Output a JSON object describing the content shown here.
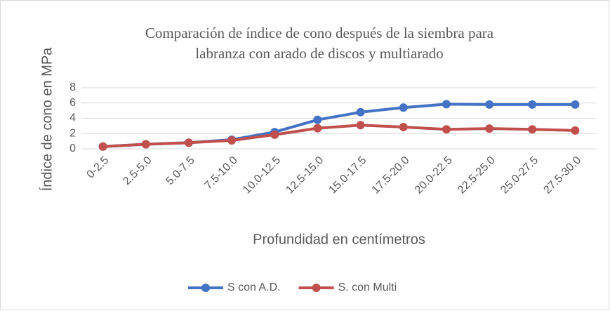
{
  "chart_data": {
    "type": "line",
    "title": [
      "Comparación de índice de cono después de la siembra para",
      "labranza con arado de discos y multiarado"
    ],
    "x_label": "Profundidad en centímetros",
    "y_label": "Índice de cono en MPa",
    "categories": [
      "0-2.5",
      "2.5-5.0",
      "5.0-7.5",
      "7.5-10.0",
      "10.0-12.5",
      "12.5-15.0",
      "15.0-17.5",
      "17.5-20.0",
      "20.0-22.5",
      "22.5-25.0",
      "25.0-27.5",
      "27.5-30.0"
    ],
    "series": [
      {
        "name": "S con A.D.",
        "color": "#4472c4",
        "values": [
          0.3,
          0.6,
          0.8,
          1.2,
          2.2,
          3.8,
          4.8,
          5.4,
          5.85,
          5.8,
          5.8,
          5.8
        ]
      },
      {
        "name": "S. con Multi",
        "color": "#c0504d",
        "values": [
          0.3,
          0.6,
          0.8,
          1.1,
          1.85,
          2.7,
          3.1,
          2.85,
          2.55,
          2.65,
          2.55,
          2.4
        ]
      }
    ],
    "ylim": [
      0,
      8
    ],
    "yticks": [
      0,
      2,
      4,
      6,
      8
    ],
    "grid": true,
    "legend": "bottom"
  }
}
